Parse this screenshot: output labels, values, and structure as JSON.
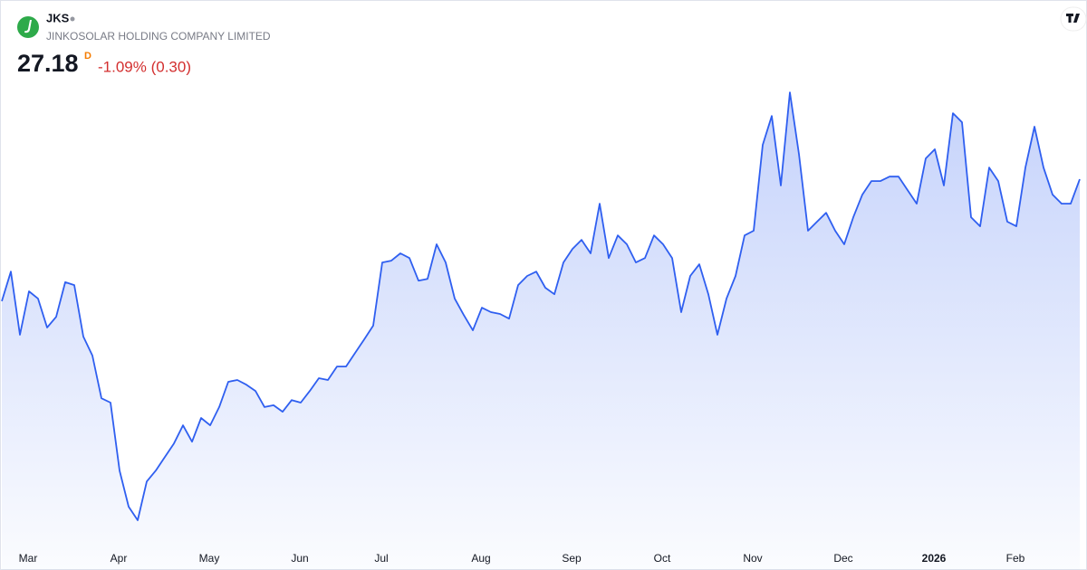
{
  "chart_data": {
    "type": "line",
    "title": "JKS",
    "subtitle": "JINKOSOLAR HOLDING COMPANY LIMITED",
    "last": 27.18,
    "interval": "D",
    "change": "-1.09% (0.30)",
    "categories": [
      null,
      null,
      "Mar",
      null,
      null,
      null,
      null,
      null,
      null,
      null,
      null,
      null,
      "Apr",
      null,
      null,
      null,
      null,
      null,
      null,
      null,
      null,
      null,
      "May",
      null,
      null,
      null,
      null,
      null,
      null,
      null,
      null,
      null,
      "Jun",
      null,
      null,
      null,
      null,
      null,
      null,
      null,
      null,
      "Jul",
      null,
      null,
      null,
      null,
      null,
      null,
      null,
      null,
      null,
      null,
      "Aug",
      null,
      null,
      null,
      null,
      null,
      null,
      null,
      null,
      null,
      "Sep",
      null,
      null,
      null,
      null,
      null,
      null,
      null,
      null,
      null,
      "Oct",
      null,
      null,
      null,
      null,
      null,
      null,
      null,
      null,
      null,
      "Nov",
      null,
      null,
      null,
      null,
      null,
      null,
      null,
      null,
      null,
      "Dec",
      null,
      null,
      null,
      null,
      null,
      null,
      null,
      null,
      null,
      "2026",
      null,
      null,
      null,
      null,
      null,
      null,
      null,
      null,
      "Feb",
      null,
      null,
      null,
      null,
      null,
      null,
      null,
      null
    ],
    "series": [
      {
        "color": "#2f5ff0",
        "values": [
          22.49,
          23.63,
          21.2,
          22.87,
          22.59,
          21.48,
          21.89,
          23.22,
          23.11,
          21.13,
          20.4,
          18.76,
          18.59,
          15.98,
          14.59,
          14.07,
          15.56,
          15.98,
          16.5,
          17.02,
          17.72,
          17.09,
          18.0,
          17.72,
          18.42,
          19.39,
          19.46,
          19.28,
          19.04,
          18.42,
          18.49,
          18.24,
          18.69,
          18.59,
          19.04,
          19.53,
          19.46,
          19.98,
          19.98,
          20.5,
          21.02,
          21.55,
          23.98,
          24.05,
          24.33,
          24.15,
          23.28,
          23.35,
          24.68,
          23.98,
          22.59,
          21.96,
          21.37,
          22.24,
          22.07,
          22.0,
          21.82,
          23.11,
          23.46,
          23.63,
          23.01,
          22.76,
          23.98,
          24.5,
          24.85,
          24.33,
          26.24,
          24.15,
          25.02,
          24.68,
          23.98,
          24.15,
          25.02,
          24.68,
          24.15,
          22.07,
          23.46,
          23.91,
          22.76,
          21.2,
          22.59,
          23.46,
          25.02,
          25.2,
          28.5,
          29.61,
          26.94,
          30.52,
          28.15,
          25.2,
          25.55,
          25.89,
          25.2,
          24.68,
          25.72,
          26.59,
          27.11,
          27.11,
          27.28,
          27.28,
          26.76,
          26.24,
          27.98,
          28.33,
          26.94,
          29.72,
          29.37,
          25.72,
          25.37,
          27.63,
          27.11,
          25.55,
          25.37,
          27.63,
          29.2,
          27.63,
          26.59,
          26.24,
          26.24,
          27.18
        ]
      }
    ],
    "ylim": [
      13.2,
      30.94
    ]
  }
}
